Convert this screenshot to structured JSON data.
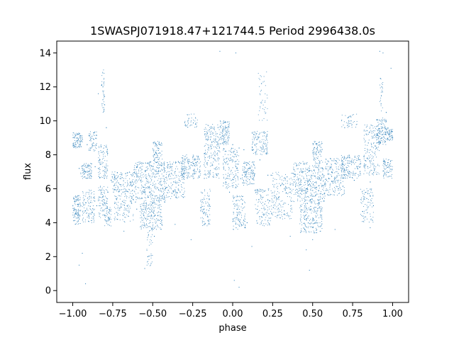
{
  "chart_data": {
    "type": "scatter",
    "title": "1SWASPJ071918.47+121744.5 Period 2996438.0s",
    "xlabel": "phase",
    "ylabel": "flux",
    "xlim": [
      -1.1,
      1.1
    ],
    "ylim": [
      -0.7,
      14.7
    ],
    "xticks": [
      -1.0,
      -0.75,
      -0.5,
      -0.25,
      0.0,
      0.25,
      0.5,
      0.75,
      1.0
    ],
    "xtick_labels": [
      "−1.00",
      "−0.75",
      "−0.50",
      "−0.25",
      "0.00",
      "0.25",
      "0.50",
      "0.75",
      "1.00"
    ],
    "yticks": [
      0,
      2,
      4,
      6,
      8,
      10,
      12,
      14
    ],
    "ytick_labels": [
      "0",
      "2",
      "4",
      "6",
      "8",
      "10",
      "12",
      "14"
    ],
    "grid": false,
    "legend": "none",
    "marker_color": "#1f77b4",
    "series": [
      {
        "x": [
          -0.99,
          -0.98,
          -0.97,
          -0.96,
          -0.95,
          -0.94,
          -0.93,
          -0.92,
          -0.91,
          -0.9,
          -0.89,
          -0.88,
          -0.86,
          -0.85,
          -0.84,
          -0.83,
          -0.82,
          -0.81,
          -0.8,
          -0.79,
          -0.78,
          -0.76,
          -0.74,
          -0.72,
          -0.7,
          -0.68,
          -0.66,
          -0.64,
          -0.62,
          -0.6,
          -0.58,
          -0.56,
          -0.55,
          -0.54,
          -0.53,
          -0.52,
          -0.51,
          -0.5,
          -0.49,
          -0.48,
          -0.47,
          -0.46,
          -0.45,
          -0.44,
          -0.42,
          -0.4,
          -0.38,
          -0.36,
          -0.34,
          -0.32,
          -0.3,
          -0.28,
          -0.26,
          -0.24,
          -0.22,
          -0.2,
          -0.18,
          -0.16,
          -0.14,
          -0.12,
          -0.1,
          -0.08,
          -0.06,
          -0.04,
          -0.02,
          0.0,
          0.01,
          0.02,
          0.03,
          0.04,
          0.05,
          0.06,
          0.07,
          0.08,
          0.09,
          0.1,
          0.11,
          0.12,
          0.14,
          0.15,
          0.16,
          0.17,
          0.18,
          0.19,
          0.2,
          0.21,
          0.22,
          0.24,
          0.26,
          0.28,
          0.3,
          0.32,
          0.34,
          0.36,
          0.38,
          0.4,
          0.42,
          0.44,
          0.45,
          0.46,
          0.47,
          0.48,
          0.49,
          0.5,
          0.51,
          0.52,
          0.53,
          0.54,
          0.55,
          0.56,
          0.58,
          0.6,
          0.62,
          0.64,
          0.66,
          0.68,
          0.7,
          0.72,
          0.74,
          0.76,
          0.78,
          0.8,
          0.82,
          0.84,
          0.86,
          0.88,
          0.9,
          0.92,
          0.94,
          0.96,
          0.98,
          1.0
        ],
        "y": [
          9.0,
          4.5,
          8.7,
          7.2,
          5.0,
          8.9,
          7.1,
          4.7,
          8.6,
          7.0,
          5.2,
          4.6,
          7.3,
          5.0,
          7.2,
          5.5,
          12.1,
          8.2,
          7.0,
          9.6,
          5.8,
          6.5,
          6.2,
          4.2,
          6.6,
          5.2,
          5.0,
          6.4,
          5.6,
          4.8,
          6.7,
          6.1,
          5.8,
          6.6,
          5.5,
          7.4,
          4.4,
          6.2,
          3.2,
          8.1,
          6.9,
          5.4,
          4.6,
          7.1,
          6.0,
          6.8,
          7.3,
          5.9,
          7.6,
          6.9,
          9.9,
          6.7,
          7.4,
          7.1,
          7.6,
          4.7,
          4.6,
          9.3,
          8.9,
          7.8,
          6.8,
          9.2,
          9.1,
          9.6,
          5.8,
          8.6,
          6.7,
          7.3,
          4.8,
          8.4,
          6.6,
          5.1,
          8.3,
          6.8,
          4.0,
          7.2,
          6.7,
          7.1,
          5.9,
          8.9,
          9.0,
          7.7,
          12.2,
          8.5,
          5.1,
          8.1,
          6.8,
          6.8,
          5.6,
          5.4,
          6.2,
          4.5,
          6.7,
          5.8,
          6.9,
          7.4,
          5.9,
          7.0,
          4.2,
          6.0,
          6.4,
          6.5,
          4.8,
          5.9,
          3.4,
          8.1,
          6.6,
          5.2,
          4.7,
          7.2,
          6.3,
          6.6,
          7.0,
          7.5,
          6.9,
          7.1,
          9.6,
          7.0,
          10.0,
          6.5,
          7.2,
          7.5,
          7.9,
          7.8,
          6.4,
          5.0,
          8.7,
          9.4,
          9.2,
          10.5,
          7.4,
          9.0
        ]
      }
    ],
    "dense_clusters": [
      {
        "x": [
          -1.0,
          -0.95
        ],
        "y": [
          3.9,
          5.6
        ],
        "n": 120
      },
      {
        "x": [
          -1.0,
          -0.94
        ],
        "y": [
          8.4,
          9.3
        ],
        "n": 90
      },
      {
        "x": [
          -0.95,
          -0.88
        ],
        "y": [
          6.6,
          7.5
        ],
        "n": 90
      },
      {
        "x": [
          -0.94,
          -0.86
        ],
        "y": [
          4.0,
          6.0
        ],
        "n": 110
      },
      {
        "x": [
          -0.9,
          -0.85
        ],
        "y": [
          8.2,
          9.4
        ],
        "n": 60
      },
      {
        "x": [
          -0.84,
          -0.78
        ],
        "y": [
          4.3,
          6.2
        ],
        "n": 90
      },
      {
        "x": [
          -0.84,
          -0.78
        ],
        "y": [
          6.6,
          8.6
        ],
        "n": 100
      },
      {
        "x": [
          -0.82,
          -0.8
        ],
        "y": [
          10.5,
          13.1
        ],
        "n": 40
      },
      {
        "x": [
          -0.8,
          -0.76
        ],
        "y": [
          3.8,
          5.0
        ],
        "n": 50
      },
      {
        "x": [
          -0.76,
          -0.62
        ],
        "y": [
          5.8,
          7.0
        ],
        "n": 140
      },
      {
        "x": [
          -0.74,
          -0.62
        ],
        "y": [
          4.0,
          5.8
        ],
        "n": 110
      },
      {
        "x": [
          -0.62,
          -0.42
        ],
        "y": [
          5.2,
          7.6
        ],
        "n": 380
      },
      {
        "x": [
          -0.58,
          -0.44
        ],
        "y": [
          3.6,
          5.2
        ],
        "n": 200
      },
      {
        "x": [
          -0.5,
          -0.44
        ],
        "y": [
          7.5,
          8.8
        ],
        "n": 80
      },
      {
        "x": [
          -0.54,
          -0.5
        ],
        "y": [
          1.4,
          3.6
        ],
        "n": 35
      },
      {
        "x": [
          -0.42,
          -0.3
        ],
        "y": [
          5.4,
          7.6
        ],
        "n": 180
      },
      {
        "x": [
          -0.32,
          -0.2
        ],
        "y": [
          6.6,
          8.0
        ],
        "n": 160
      },
      {
        "x": [
          -0.3,
          -0.22
        ],
        "y": [
          9.6,
          10.4
        ],
        "n": 40
      },
      {
        "x": [
          -0.2,
          -0.14
        ],
        "y": [
          3.8,
          6.0
        ],
        "n": 90
      },
      {
        "x": [
          -0.18,
          -0.08
        ],
        "y": [
          6.6,
          9.8
        ],
        "n": 220
      },
      {
        "x": [
          -0.08,
          -0.02
        ],
        "y": [
          8.6,
          10.0
        ],
        "n": 110
      },
      {
        "x": [
          -0.06,
          0.04
        ],
        "y": [
          6.0,
          8.4
        ],
        "n": 160
      },
      {
        "x": [
          0.0,
          0.08
        ],
        "y": [
          3.6,
          5.6
        ],
        "n": 120
      },
      {
        "x": [
          0.06,
          0.14
        ],
        "y": [
          6.2,
          7.6
        ],
        "n": 120
      },
      {
        "x": [
          0.12,
          0.22
        ],
        "y": [
          8.0,
          9.4
        ],
        "n": 120
      },
      {
        "x": [
          0.16,
          0.22
        ],
        "y": [
          10.0,
          13.0
        ],
        "n": 40
      },
      {
        "x": [
          0.14,
          0.24
        ],
        "y": [
          3.8,
          6.0
        ],
        "n": 120
      },
      {
        "x": [
          0.24,
          0.38
        ],
        "y": [
          4.2,
          7.0
        ],
        "n": 180
      },
      {
        "x": [
          0.38,
          0.58
        ],
        "y": [
          5.2,
          7.6
        ],
        "n": 380
      },
      {
        "x": [
          0.42,
          0.56
        ],
        "y": [
          3.4,
          5.2
        ],
        "n": 200
      },
      {
        "x": [
          0.5,
          0.56
        ],
        "y": [
          7.6,
          8.8
        ],
        "n": 80
      },
      {
        "x": [
          0.58,
          0.7
        ],
        "y": [
          5.6,
          7.8
        ],
        "n": 180
      },
      {
        "x": [
          0.68,
          0.8
        ],
        "y": [
          6.6,
          8.0
        ],
        "n": 150
      },
      {
        "x": [
          0.68,
          0.78
        ],
        "y": [
          9.6,
          10.4
        ],
        "n": 40
      },
      {
        "x": [
          0.8,
          0.88
        ],
        "y": [
          4.0,
          6.0
        ],
        "n": 90
      },
      {
        "x": [
          0.82,
          0.92
        ],
        "y": [
          6.8,
          9.8
        ],
        "n": 180
      },
      {
        "x": [
          0.9,
          0.96
        ],
        "y": [
          8.6,
          10.2
        ],
        "n": 120
      },
      {
        "x": [
          0.94,
          1.0
        ],
        "y": [
          6.6,
          7.8
        ],
        "n": 80
      },
      {
        "x": [
          0.96,
          1.0
        ],
        "y": [
          8.8,
          9.6
        ],
        "n": 60
      },
      {
        "x": [
          0.92,
          0.94
        ],
        "y": [
          10.5,
          12.6
        ],
        "n": 25
      }
    ],
    "sparse_outliers": {
      "x": [
        -0.94,
        -0.96,
        -0.92,
        -0.55,
        -0.53,
        -0.51,
        -0.08,
        0.02,
        0.04,
        0.01,
        0.46,
        0.48,
        0.5,
        0.92,
        0.94,
        0.99,
        -0.36,
        0.12,
        0.36,
        0.64,
        -0.68,
        0.86,
        -0.84,
        -0.26
      ],
      "y": [
        2.2,
        1.5,
        0.4,
        1.3,
        2.0,
        1.6,
        14.1,
        14.0,
        0.2,
        0.6,
        2.4,
        1.2,
        3.0,
        14.1,
        14.0,
        13.1,
        3.9,
        2.6,
        3.2,
        3.6,
        3.5,
        3.7,
        11.6,
        3.0
      ]
    }
  }
}
